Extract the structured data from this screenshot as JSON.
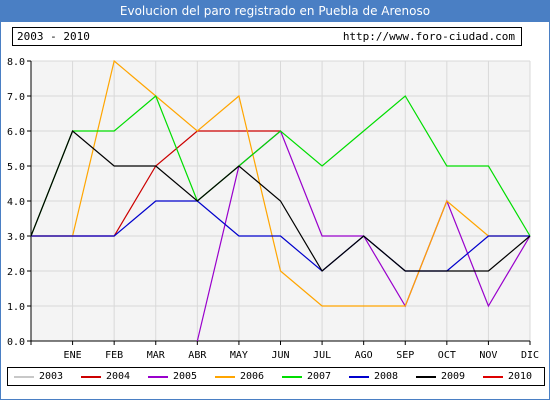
{
  "title": "Evolucion del paro registrado en Puebla de Arenoso",
  "info": {
    "years_range": "2003 - 2010",
    "website": "http://www.foro-ciudad.com"
  },
  "colors": {
    "title_bg": "#4a7fc4",
    "grid": "#d9d9d9",
    "plot_bg": "#f4f4f4"
  },
  "chart_data": {
    "type": "line",
    "categories": [
      "",
      "ENE",
      "FEB",
      "MAR",
      "ABR",
      "MAY",
      "JUN",
      "JUL",
      "AGO",
      "SEP",
      "OCT",
      "NOV",
      "DIC"
    ],
    "y_ticks": [
      "0.0",
      "1.0",
      "2.0",
      "3.0",
      "4.0",
      "5.0",
      "6.0",
      "7.0",
      "8.0"
    ],
    "ylim": [
      0,
      8
    ],
    "grid": true,
    "legend_position": "bottom",
    "series": [
      {
        "name": "2003",
        "color": "#c8c8c8",
        "values": [
          null,
          null,
          null,
          null,
          null,
          null,
          null,
          null,
          null,
          null,
          null,
          null,
          null
        ]
      },
      {
        "name": "2004",
        "color": "#cc0000",
        "values": [
          3,
          3,
          3,
          5,
          6,
          6,
          6,
          null,
          null,
          null,
          null,
          null,
          null
        ]
      },
      {
        "name": "2005",
        "color": "#9900cc",
        "values": [
          null,
          null,
          null,
          null,
          0,
          5,
          6,
          3,
          3,
          1,
          4,
          1,
          3
        ]
      },
      {
        "name": "2006",
        "color": "#ffa500",
        "values": [
          3,
          3,
          8,
          7,
          6,
          7,
          2,
          1,
          1,
          1,
          4,
          3,
          3
        ]
      },
      {
        "name": "2007",
        "color": "#00dd00",
        "values": [
          3,
          6,
          6,
          7,
          4,
          5,
          6,
          5,
          6,
          7,
          5,
          5,
          3
        ]
      },
      {
        "name": "2008",
        "color": "#0000cc",
        "values": [
          3,
          3,
          3,
          4,
          4,
          3,
          3,
          2,
          3,
          2,
          2,
          3,
          3
        ]
      },
      {
        "name": "2009",
        "color": "#000000",
        "values": [
          3,
          6,
          5,
          5,
          4,
          5,
          4,
          2,
          3,
          2,
          2,
          2,
          3
        ]
      },
      {
        "name": "2010",
        "color": "#dd0000",
        "values": [
          null,
          null,
          null,
          null,
          null,
          null,
          null,
          null,
          null,
          null,
          null,
          null,
          null
        ]
      }
    ]
  }
}
